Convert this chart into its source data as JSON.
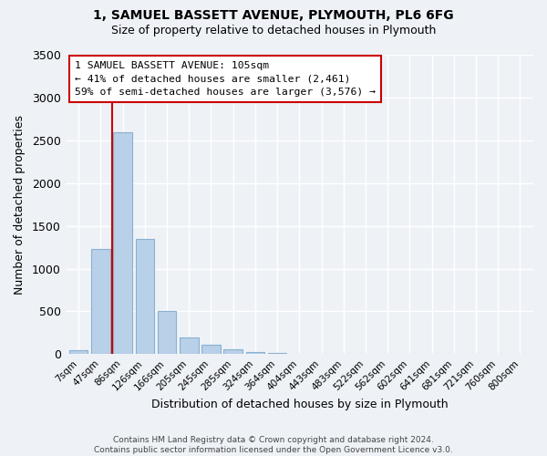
{
  "title1": "1, SAMUEL BASSETT AVENUE, PLYMOUTH, PL6 6FG",
  "title2": "Size of property relative to detached houses in Plymouth",
  "xlabel": "Distribution of detached houses by size in Plymouth",
  "ylabel": "Number of detached properties",
  "bar_labels": [
    "7sqm",
    "47sqm",
    "86sqm",
    "126sqm",
    "166sqm",
    "205sqm",
    "245sqm",
    "285sqm",
    "324sqm",
    "364sqm",
    "404sqm",
    "443sqm",
    "483sqm",
    "522sqm",
    "562sqm",
    "602sqm",
    "641sqm",
    "681sqm",
    "721sqm",
    "760sqm",
    "800sqm"
  ],
  "bar_values": [
    50,
    1230,
    2590,
    1350,
    500,
    200,
    110,
    55,
    30,
    15,
    8,
    4,
    2,
    1,
    0,
    0,
    0,
    0,
    0,
    0,
    0
  ],
  "bar_color": "#b8d0e8",
  "bar_edge_color": "#8ab0d0",
  "vline_bar_index": 2,
  "vline_color": "#cc0000",
  "ylim": [
    0,
    3500
  ],
  "yticks": [
    0,
    500,
    1000,
    1500,
    2000,
    2500,
    3000,
    3500
  ],
  "annotation_title": "1 SAMUEL BASSETT AVENUE: 105sqm",
  "annotation_line1": "← 41% of detached houses are smaller (2,461)",
  "annotation_line2": "59% of semi-detached houses are larger (3,576) →",
  "annotation_box_color": "#ffffff",
  "annotation_box_edge_color": "#cc0000",
  "footer1": "Contains HM Land Registry data © Crown copyright and database right 2024.",
  "footer2": "Contains public sector information licensed under the Open Government Licence v3.0.",
  "background_color": "#eef2f7",
  "grid_color": "#ffffff"
}
